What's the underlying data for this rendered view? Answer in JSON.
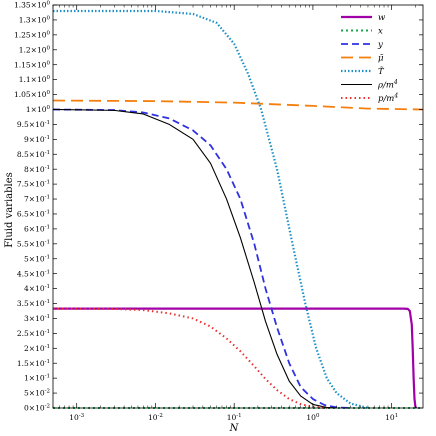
{
  "chart_data": {
    "type": "line",
    "xlabel": "N",
    "ylabel": "Fluid variables",
    "xscale": "log",
    "xlim": [
      0.0005,
      25
    ],
    "ylim": [
      0,
      1.35
    ],
    "x_ticks": [
      {
        "value": 0.001,
        "base": "10",
        "exp": "-3"
      },
      {
        "value": 0.01,
        "base": "10",
        "exp": "-2"
      },
      {
        "value": 0.1,
        "base": "10",
        "exp": "-1"
      },
      {
        "value": 1,
        "base": "10",
        "exp": "0"
      },
      {
        "value": 10,
        "base": "10",
        "exp": "1"
      }
    ],
    "y_ticks": [
      {
        "value": 0.0,
        "mant": "0×10",
        "exp": "-2"
      },
      {
        "value": 0.05,
        "mant": "5×10",
        "exp": "-2"
      },
      {
        "value": 0.1,
        "mant": "1×10",
        "exp": "-1"
      },
      {
        "value": 0.15,
        "mant": "1.5×10",
        "exp": "-1"
      },
      {
        "value": 0.2,
        "mant": "2×10",
        "exp": "-1"
      },
      {
        "value": 0.25,
        "mant": "2.5×10",
        "exp": "-1"
      },
      {
        "value": 0.3,
        "mant": "3×10",
        "exp": "-1"
      },
      {
        "value": 0.35,
        "mant": "3.5×10",
        "exp": "-1"
      },
      {
        "value": 0.4,
        "mant": "4×10",
        "exp": "-1"
      },
      {
        "value": 0.45,
        "mant": "4.5×10",
        "exp": "-1"
      },
      {
        "value": 0.5,
        "mant": "5×10",
        "exp": "-1"
      },
      {
        "value": 0.55,
        "mant": "5.5×10",
        "exp": "-1"
      },
      {
        "value": 0.6,
        "mant": "6×10",
        "exp": "-1"
      },
      {
        "value": 0.65,
        "mant": "6.5×10",
        "exp": "-1"
      },
      {
        "value": 0.7,
        "mant": "7×10",
        "exp": "-1"
      },
      {
        "value": 0.75,
        "mant": "7.5×10",
        "exp": "-1"
      },
      {
        "value": 0.8,
        "mant": "8×10",
        "exp": "-1"
      },
      {
        "value": 0.85,
        "mant": "8.5×10",
        "exp": "-1"
      },
      {
        "value": 0.9,
        "mant": "9×10",
        "exp": "-1"
      },
      {
        "value": 0.95,
        "mant": "9.5×10",
        "exp": "-1"
      },
      {
        "value": 1.0,
        "mant": "1×10",
        "exp": "0"
      },
      {
        "value": 1.05,
        "mant": "1.05×10",
        "exp": "0"
      },
      {
        "value": 1.1,
        "mant": "1.1×10",
        "exp": "0"
      },
      {
        "value": 1.15,
        "mant": "1.15×10",
        "exp": "0"
      },
      {
        "value": 1.2,
        "mant": "1.2×10",
        "exp": "0"
      },
      {
        "value": 1.25,
        "mant": "1.25×10",
        "exp": "0"
      },
      {
        "value": 1.3,
        "mant": "1.3×10",
        "exp": "0"
      },
      {
        "value": 1.35,
        "mant": "1.35×10",
        "exp": "0"
      }
    ],
    "legend_position": "top-right",
    "grid": false,
    "series": [
      {
        "name": "w",
        "base": "w",
        "sup": "",
        "color": "#a100a8",
        "dash": "",
        "width": 2.2,
        "points": [
          [
            0.0005,
            0.333
          ],
          [
            0.01,
            0.333
          ],
          [
            0.1,
            0.333
          ],
          [
            1,
            0.333
          ],
          [
            10,
            0.333
          ],
          [
            14,
            0.333
          ],
          [
            16,
            0.332
          ],
          [
            17,
            0.325
          ],
          [
            18,
            0.28
          ],
          [
            18.5,
            0.2
          ],
          [
            19,
            0.1
          ],
          [
            19.5,
            0.03
          ],
          [
            20,
            0.005
          ],
          [
            20.5,
            0.0
          ]
        ]
      },
      {
        "name": "x",
        "base": "x",
        "sup": "",
        "color": "#1aa64b",
        "dash": "2 3",
        "width": 2.0,
        "points": [
          [
            0.0005,
            0.0
          ],
          [
            25,
            0.0
          ]
        ]
      },
      {
        "name": "y",
        "base": "y",
        "sup": "",
        "color": "#2f32e0",
        "dash": "7 4",
        "width": 1.8,
        "points": [
          [
            0.0005,
            1.0
          ],
          [
            0.003,
            0.998
          ],
          [
            0.007,
            0.99
          ],
          [
            0.015,
            0.97
          ],
          [
            0.03,
            0.93
          ],
          [
            0.05,
            0.88
          ],
          [
            0.08,
            0.8
          ],
          [
            0.12,
            0.7
          ],
          [
            0.18,
            0.55
          ],
          [
            0.25,
            0.4
          ],
          [
            0.35,
            0.27
          ],
          [
            0.5,
            0.15
          ],
          [
            0.7,
            0.07
          ],
          [
            1.0,
            0.03
          ],
          [
            1.4,
            0.01
          ],
          [
            2.0,
            0.002
          ],
          [
            3.0,
            0.0
          ]
        ]
      },
      {
        "name": "mu",
        "base": "μ̃",
        "sup": "",
        "color": "#f57f0e",
        "dash": "12 6",
        "width": 1.8,
        "points": [
          [
            0.0005,
            1.03
          ],
          [
            0.01,
            1.028
          ],
          [
            0.1,
            1.023
          ],
          [
            1,
            1.012
          ],
          [
            5,
            1.003
          ],
          [
            25,
            1.0
          ]
        ]
      },
      {
        "name": "T",
        "base": "T̃",
        "sup": "",
        "color": "#1e90c8",
        "dash": "1.5 2",
        "width": 2.2,
        "points": [
          [
            0.0005,
            1.33
          ],
          [
            0.01,
            1.33
          ],
          [
            0.03,
            1.32
          ],
          [
            0.06,
            1.29
          ],
          [
            0.1,
            1.22
          ],
          [
            0.15,
            1.12
          ],
          [
            0.22,
            1.0
          ],
          [
            0.35,
            0.8
          ],
          [
            0.55,
            0.55
          ],
          [
            0.8,
            0.35
          ],
          [
            1.1,
            0.2
          ],
          [
            1.5,
            0.1
          ],
          [
            2.0,
            0.05
          ],
          [
            3,
            0.015
          ],
          [
            5,
            0.0
          ]
        ]
      },
      {
        "name": "rho",
        "base": "ρ/m",
        "sup": "4",
        "color": "#000000",
        "dash": "",
        "width": 1.1,
        "points": [
          [
            0.0005,
            1.0
          ],
          [
            0.003,
            0.997
          ],
          [
            0.007,
            0.985
          ],
          [
            0.015,
            0.95
          ],
          [
            0.03,
            0.9
          ],
          [
            0.05,
            0.82
          ],
          [
            0.08,
            0.7
          ],
          [
            0.12,
            0.57
          ],
          [
            0.18,
            0.42
          ],
          [
            0.25,
            0.29
          ],
          [
            0.35,
            0.18
          ],
          [
            0.5,
            0.09
          ],
          [
            0.7,
            0.04
          ],
          [
            1.0,
            0.012
          ],
          [
            1.5,
            0.002
          ],
          [
            2.0,
            0.0
          ]
        ]
      },
      {
        "name": "p",
        "base": "p/m",
        "sup": "4",
        "color": "#e8322e",
        "dash": "1.5 3",
        "width": 2.0,
        "points": [
          [
            0.0005,
            0.333
          ],
          [
            0.003,
            0.332
          ],
          [
            0.007,
            0.328
          ],
          [
            0.015,
            0.317
          ],
          [
            0.03,
            0.3
          ],
          [
            0.05,
            0.273
          ],
          [
            0.08,
            0.233
          ],
          [
            0.12,
            0.19
          ],
          [
            0.18,
            0.14
          ],
          [
            0.25,
            0.097
          ],
          [
            0.35,
            0.06
          ],
          [
            0.5,
            0.03
          ],
          [
            0.7,
            0.013
          ],
          [
            1.0,
            0.004
          ],
          [
            1.5,
            0.0
          ]
        ]
      }
    ]
  }
}
